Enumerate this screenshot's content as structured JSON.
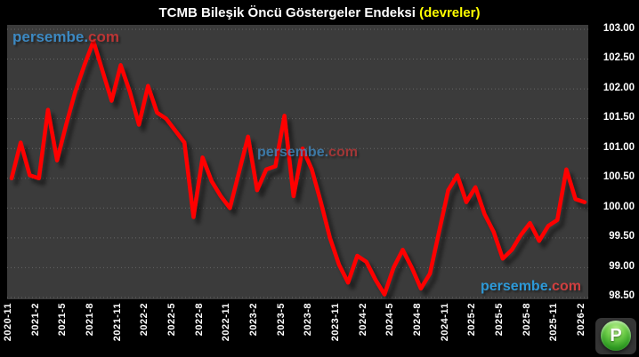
{
  "title": {
    "main": "TCMB Bileşik Öncü Göstergeler Endeksi",
    "suffix": "(devreler)"
  },
  "watermark": {
    "name": "persembe.",
    "tld": "com"
  },
  "logo": {
    "letter": "P"
  },
  "colors": {
    "page_bg": "#000000",
    "plot_bg": "#3b3b3b",
    "line": "#ff0000",
    "reference_line": "#2b9fd8",
    "title_text": "#ffffff",
    "title_suffix": "#ffff00",
    "axis_text": "#ffffff",
    "grid": "#9a9a9a",
    "watermark_blue": "#3d8dc9",
    "watermark_red": "#c23535",
    "logo_green": "#2f9a22"
  },
  "chart_data": {
    "type": "line",
    "title": "TCMB Bileşik Öncü Göstergeler Endeksi (devreler)",
    "xlabel": "",
    "ylabel": "",
    "ylim": [
      98.5,
      103.0
    ],
    "grid": "dotted-horizontal",
    "legend": "none",
    "reference_line": 100.0,
    "x": [
      "2020-11",
      "2020-12",
      "2021-1",
      "2021-2",
      "2021-3",
      "2021-4",
      "2021-5",
      "2021-6",
      "2021-7",
      "2021-8",
      "2021-9",
      "2021-10",
      "2021-11",
      "2021-12",
      "2022-1",
      "2022-2",
      "2022-3",
      "2022-4",
      "2022-5",
      "2022-6",
      "2022-7",
      "2022-8",
      "2022-9",
      "2022-10",
      "2022-11",
      "2022-12",
      "2023-1",
      "2023-2",
      "2023-3",
      "2023-4",
      "2023-5",
      "2023-6",
      "2023-7",
      "2023-8",
      "2023-9",
      "2023-10",
      "2023-11",
      "2023-12",
      "2024-1",
      "2024-2",
      "2024-3",
      "2024-4",
      "2024-5",
      "2024-6",
      "2024-7",
      "2024-8",
      "2024-9",
      "2024-10",
      "2024-11",
      "2024-12",
      "2025-1",
      "2025-2",
      "2025-3",
      "2025-4",
      "2025-5",
      "2025-6",
      "2025-7",
      "2025-8",
      "2025-9",
      "2025-10",
      "2025-11",
      "2025-12",
      "2026-1",
      "2026-2"
    ],
    "values": [
      100.5,
      101.1,
      100.55,
      100.5,
      101.65,
      100.8,
      101.4,
      101.95,
      102.4,
      102.8,
      102.3,
      101.8,
      102.4,
      101.95,
      101.4,
      102.05,
      101.6,
      101.5,
      101.3,
      101.1,
      99.85,
      100.85,
      100.45,
      100.2,
      100.0,
      100.6,
      101.2,
      100.3,
      100.65,
      100.7,
      101.55,
      100.2,
      101.0,
      100.65,
      100.1,
      99.5,
      99.05,
      98.75,
      99.2,
      99.1,
      98.8,
      98.55,
      99.0,
      99.3,
      99.0,
      98.65,
      98.9,
      99.6,
      100.3,
      100.55,
      100.1,
      100.35,
      99.9,
      99.6,
      99.15,
      99.3,
      99.55,
      99.75,
      99.45,
      99.7,
      99.8,
      100.65,
      100.15,
      100.1
    ],
    "x_tick_labels": [
      "2020-11",
      "2021-2",
      "2021-5",
      "2021-8",
      "2021-11",
      "2022-2",
      "2022-5",
      "2022-8",
      "2022-11",
      "2023-2",
      "2023-5",
      "2023-8",
      "2023-11",
      "2024-2",
      "2024-5",
      "2024-8",
      "2024-11",
      "2025-2",
      "2025-5",
      "2025-8",
      "2025-11",
      "2026-2"
    ],
    "y_tick_labels": [
      "103.00",
      "102.50",
      "102.00",
      "101.50",
      "101.00",
      "100.50",
      "100.00",
      "99.50",
      "99.00",
      "98.50"
    ]
  }
}
